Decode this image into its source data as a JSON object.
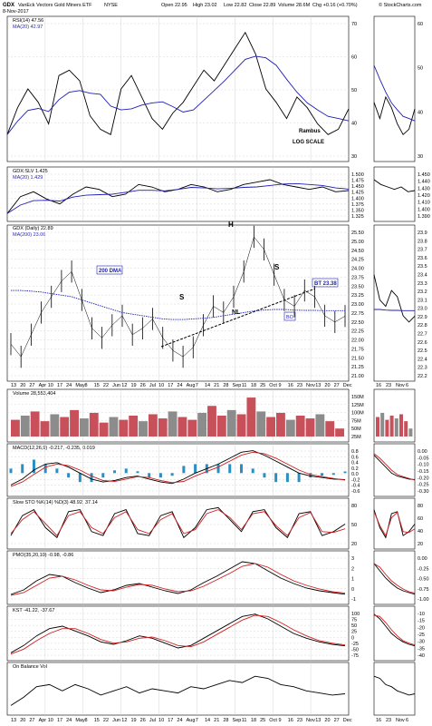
{
  "header": {
    "symbol": "GDX",
    "name": "VanEck Vectors Gold Miners ETF",
    "exchange": "NYSE",
    "date": "8-Nov-2017",
    "open": "Open 22.95",
    "high": "High 23.02",
    "low": "Low 22.82",
    "close": "Close 22.89",
    "volume": "Volume 28.6M",
    "chg": "Chg +0.16 (+0.70%)",
    "credit": "© StockCharts.com"
  },
  "rsi_panel": {
    "label": "RSI(14) 47.56",
    "ma_label": "MA(20) 42.97",
    "ticks": [
      "70",
      "60",
      "50",
      "40",
      "30"
    ],
    "zoom_ticks": [
      "60",
      "50",
      "40",
      "30"
    ],
    "note1": "Rambus",
    "note2": "LOG SCALE"
  },
  "ratio_panel": {
    "label": "GDX:SLV 1.425",
    "ma_label": "MA(20) 1.429",
    "ticks": [
      "1.500",
      "1.475",
      "1.450",
      "1.425",
      "1.400",
      "1.375",
      "1.350",
      "1.325"
    ],
    "zoom_ticks": [
      "1.450",
      "1.440",
      "1.430",
      "1.420",
      "1.410",
      "1.400",
      "1.390"
    ]
  },
  "price_panel": {
    "label": "GDX (Daily) 22.89",
    "ma_label": "MA(200) 23.06",
    "ticks": [
      "25.50",
      "25.00",
      "24.50",
      "24.25",
      "24.00",
      "23.75",
      "23.50",
      "23.25",
      "23.00",
      "22.75",
      "22.50",
      "22.25",
      "22.00",
      "21.75",
      "21.50",
      "21.25",
      "21.00"
    ],
    "zoom_ticks": [
      "23.9",
      "23.8",
      "23.7",
      "23.6",
      "23.5",
      "23.4",
      "23.3",
      "23.2",
      "23.1",
      "23.0",
      "22.9",
      "22.8",
      "22.7",
      "22.6",
      "22.5",
      "22.4",
      "22.3",
      "22.2"
    ],
    "annotations": {
      "dma": "200 DMA",
      "bt": "BT 23.38",
      "h": "H",
      "s_left": "S",
      "s_right": "S",
      "nl": "NL",
      "bo": "BO"
    },
    "x_ticks": [
      "13",
      "20",
      "27",
      "Apr",
      "10",
      "17",
      "24",
      "May",
      "8",
      "15",
      "22",
      "Jun",
      "12",
      "19",
      "26",
      "Jul",
      "10",
      "17",
      "24",
      "Aug",
      "7",
      "14",
      "21",
      "28",
      "Sep",
      "11",
      "18",
      "25",
      "Oct",
      "9",
      "16",
      "23",
      "Nov",
      "13",
      "20",
      "27",
      "Dec"
    ],
    "zoom_x_ticks": [
      "16",
      "23",
      "Nov",
      "6"
    ]
  },
  "volume_panel": {
    "label": "Volume 28,553,404",
    "ticks": [
      "150M",
      "125M",
      "100M",
      "75M",
      "50M",
      "25M"
    ]
  },
  "macd_panel": {
    "label": "MACD(12,26,9) -0.217, -0.235, 0.019",
    "ticks": [
      "0.8",
      "0.6",
      "0.4",
      "0.2",
      "0.0",
      "-0.2",
      "-0.4",
      "-0.6"
    ],
    "zoom_ticks": [
      "0.00",
      "-0.05",
      "-0.10",
      "-0.15",
      "-0.20",
      "-0.25",
      "-0.30"
    ]
  },
  "sto_panel": {
    "label": "Slow STO %K(14) %D(3) 48.92, 37.14",
    "ticks": [
      "80",
      "50",
      "20"
    ],
    "zoom_ticks": [
      "80",
      "60",
      "40",
      "20"
    ]
  },
  "pmo_panel": {
    "label": "PMO(35,20,10) -0.98, -0.86",
    "ticks": [
      "3",
      "2",
      "1",
      "0",
      "-1"
    ],
    "zoom_ticks": [
      "0.00",
      "-0.25",
      "-0.50",
      "-0.75",
      "-1.00"
    ]
  },
  "kst_panel": {
    "label": "KST -41.22, -37.67",
    "ticks": [
      "100",
      "75",
      "50",
      "25",
      "0",
      "-25",
      "-50",
      "-75"
    ],
    "zoom_ticks": [
      "-10",
      "-15",
      "-20",
      "-25",
      "-30",
      "-35",
      "-40"
    ]
  },
  "obv_panel": {
    "label": "On Balance Vol"
  },
  "colors": {
    "price_line": "#000000",
    "ma_line": "#1f1fb4",
    "signal_line": "#d02020",
    "up_volume": "#c8505a",
    "down_volume": "#8c8c8c",
    "histogram": "#2a8fc0",
    "grid": "#cccccc",
    "frame": "#000000"
  },
  "chart_data": [
    {
      "type": "line",
      "title": "RSI(14)",
      "series": [
        {
          "name": "RSI(14)",
          "values": [
            38,
            48,
            55,
            50,
            42,
            60,
            62,
            58,
            45,
            40,
            38,
            55,
            60,
            52,
            44,
            40,
            46,
            50,
            56,
            62,
            58,
            64,
            70,
            76,
            68,
            55,
            50,
            44,
            52,
            48,
            42,
            38,
            40,
            47.56
          ]
        }
      ],
      "ylim": [
        30,
        80
      ]
    },
    {
      "type": "line",
      "title": "GDX:SLV",
      "series": [
        {
          "name": "GDX:SLV",
          "values": [
            1.33,
            1.4,
            1.42,
            1.39,
            1.37,
            1.41,
            1.44,
            1.43,
            1.4,
            1.41,
            1.45,
            1.44,
            1.42,
            1.43,
            1.45,
            1.44,
            1.42,
            1.43,
            1.45,
            1.46,
            1.47,
            1.45,
            1.44,
            1.43,
            1.44,
            1.42,
            1.425
          ]
        }
      ],
      "ylim": [
        1.32,
        1.5
      ]
    },
    {
      "type": "line",
      "title": "GDX (Daily)",
      "series": [
        {
          "name": "GDX (Daily)",
          "values": [
            22.0,
            21.6,
            22.3,
            23.0,
            23.5,
            24.0,
            24.3,
            23.4,
            22.5,
            22.2,
            22.6,
            22.9,
            22.3,
            22.5,
            22.8,
            22.2,
            21.8,
            21.6,
            21.9,
            22.6,
            23.2,
            23.0,
            23.5,
            24.3,
            25.4,
            25.0,
            24.2,
            23.4,
            23.2,
            23.7,
            23.5,
            22.9,
            22.7,
            22.89
          ]
        },
        {
          "name": "MA(200)",
          "values": [
            23.7,
            23.7,
            23.68,
            23.65,
            23.6,
            23.55,
            23.5,
            23.4,
            23.3,
            23.2,
            23.1,
            23.0,
            22.95,
            22.9,
            22.85,
            22.8,
            22.78,
            22.78,
            22.8,
            22.82,
            22.85,
            22.9,
            22.95,
            23.0,
            23.05,
            23.08,
            23.1,
            23.1,
            23.08,
            23.07,
            23.07,
            23.06,
            23.06,
            23.06
          ]
        }
      ],
      "ylim": [
        21.0,
        25.6
      ]
    },
    {
      "type": "bar",
      "title": "Volume",
      "values": [
        60,
        75,
        90,
        55,
        80,
        70,
        95,
        65,
        85,
        50,
        70,
        60,
        75,
        55,
        80,
        65,
        90,
        70,
        60,
        85,
        110,
        75,
        95,
        80,
        140,
        90,
        70,
        85,
        60,
        75,
        65,
        80,
        55,
        28.6
      ],
      "ylim": [
        0,
        150
      ]
    },
    {
      "type": "line",
      "title": "MACD(12,26,9)",
      "series": [
        {
          "name": "MACD",
          "values": [
            -0.4,
            -0.2,
            0.1,
            0.3,
            0.35,
            0.2,
            0.0,
            -0.2,
            -0.3,
            -0.25,
            -0.15,
            -0.1,
            -0.2,
            -0.3,
            -0.35,
            -0.2,
            0.0,
            0.15,
            0.3,
            0.5,
            0.7,
            0.75,
            0.6,
            0.4,
            0.2,
            0.0,
            -0.1,
            -0.15,
            -0.2,
            -0.217
          ]
        },
        {
          "name": "Signal",
          "values": [
            -0.45,
            -0.3,
            -0.05,
            0.2,
            0.3,
            0.25,
            0.1,
            -0.1,
            -0.25,
            -0.28,
            -0.2,
            -0.12,
            -0.15,
            -0.25,
            -0.32,
            -0.28,
            -0.1,
            0.05,
            0.2,
            0.4,
            0.6,
            0.7,
            0.65,
            0.5,
            0.3,
            0.1,
            -0.05,
            -0.12,
            -0.18,
            -0.235
          ]
        }
      ],
      "ylim": [
        -0.6,
        0.8
      ]
    },
    {
      "type": "line",
      "title": "Slow STO",
      "series": [
        {
          "name": "%K(14)",
          "values": [
            20,
            70,
            85,
            40,
            15,
            80,
            85,
            30,
            20,
            75,
            85,
            25,
            20,
            70,
            80,
            15,
            40,
            85,
            90,
            60,
            30,
            80,
            85,
            40,
            15,
            75,
            80,
            20,
            30,
            48.92
          ]
        },
        {
          "name": "%D(3)",
          "values": [
            25,
            60,
            80,
            50,
            20,
            70,
            80,
            40,
            25,
            65,
            80,
            35,
            25,
            60,
            75,
            25,
            35,
            75,
            85,
            65,
            35,
            75,
            80,
            45,
            20,
            65,
            78,
            30,
            28,
            37.14
          ]
        }
      ],
      "ylim": [
        0,
        100
      ]
    },
    {
      "type": "line",
      "title": "PMO(35,20,10)",
      "series": [
        {
          "name": "PMO",
          "values": [
            -1.0,
            -0.5,
            0.5,
            1.2,
            1.0,
            0.3,
            -0.3,
            -0.8,
            -0.5,
            0.0,
            0.2,
            -0.2,
            -0.6,
            -0.9,
            -0.5,
            0.3,
            1.0,
            1.8,
            2.6,
            2.4,
            1.6,
            0.8,
            0.2,
            -0.3,
            -0.6,
            -0.8,
            -0.98
          ]
        },
        {
          "name": "Signal",
          "values": [
            -1.1,
            -0.8,
            0.0,
            0.8,
            1.0,
            0.6,
            0.0,
            -0.5,
            -0.6,
            -0.2,
            0.1,
            0.0,
            -0.4,
            -0.7,
            -0.6,
            -0.1,
            0.6,
            1.3,
            2.1,
            2.4,
            2.0,
            1.2,
            0.5,
            0.0,
            -0.4,
            -0.7,
            -0.86
          ]
        }
      ],
      "ylim": [
        -1.5,
        3.2
      ]
    },
    {
      "type": "line",
      "title": "KST",
      "series": [
        {
          "name": "KST",
          "values": [
            -70,
            -40,
            0,
            30,
            40,
            20,
            0,
            -25,
            -35,
            -20,
            0,
            -10,
            -30,
            -50,
            -40,
            -10,
            20,
            50,
            80,
            90,
            70,
            40,
            10,
            -10,
            -25,
            -35,
            -41.22
          ]
        },
        {
          "name": "Signal",
          "values": [
            -75,
            -55,
            -20,
            10,
            30,
            30,
            10,
            -15,
            -30,
            -25,
            -10,
            -5,
            -20,
            -40,
            -45,
            -25,
            5,
            35,
            65,
            85,
            80,
            55,
            25,
            0,
            -20,
            -30,
            -37.67
          ]
        }
      ],
      "ylim": [
        -80,
        100
      ]
    },
    {
      "type": "line",
      "title": "On Balance Vol",
      "series": [
        {
          "name": "On Balance Vol",
          "values": [
            10,
            30,
            55,
            60,
            45,
            60,
            50,
            35,
            45,
            55,
            40,
            50,
            45,
            40,
            55,
            50,
            60,
            70,
            65,
            80,
            75,
            60,
            55,
            45,
            40,
            35,
            38
          ]
        }
      ],
      "ylim": [
        0,
        100
      ]
    }
  ]
}
